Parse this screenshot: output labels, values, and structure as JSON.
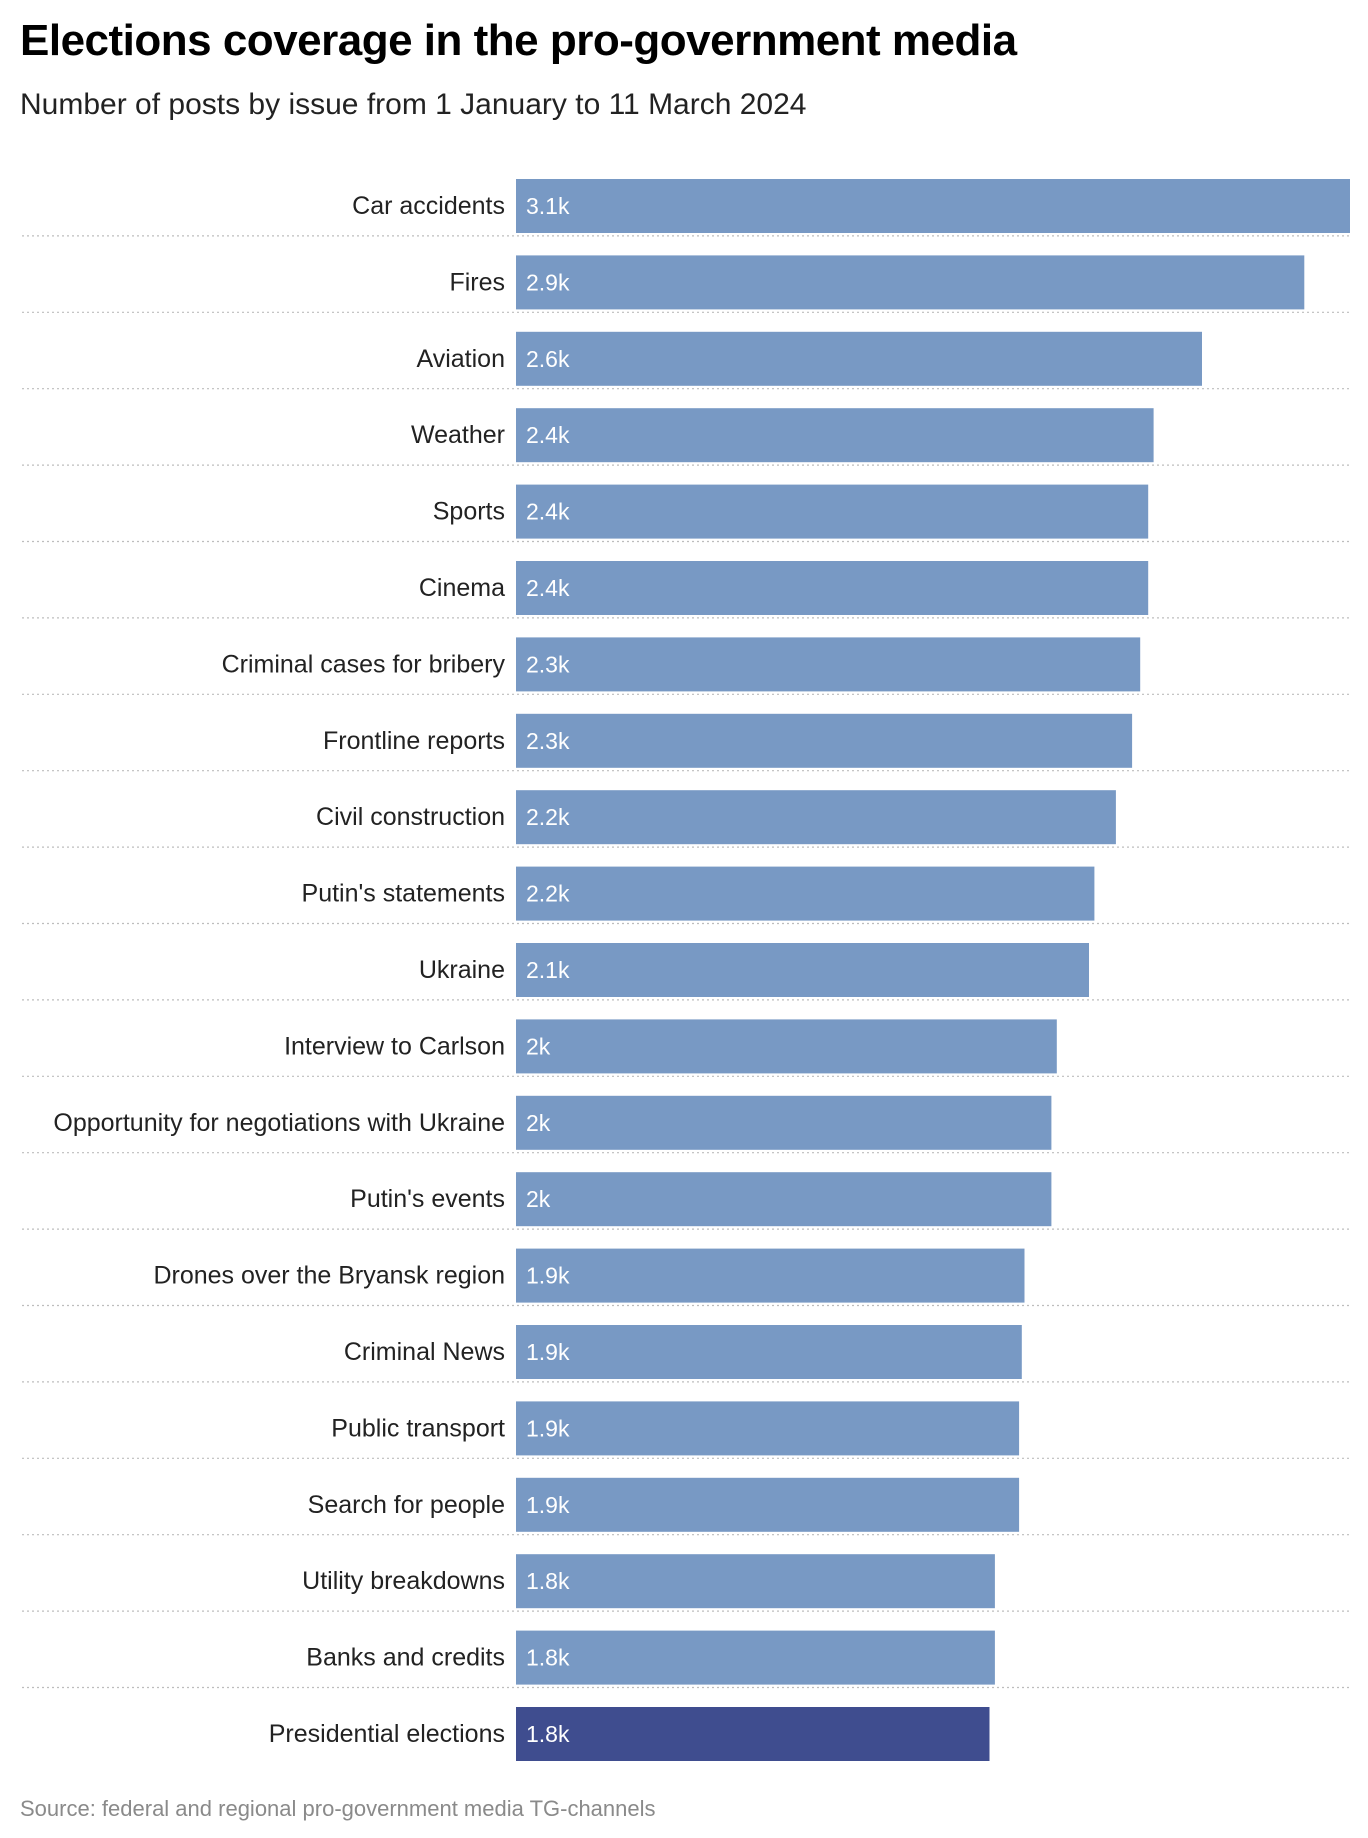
{
  "header": {
    "title": "Elections coverage in the pro-government media",
    "subtitle": "Number of posts by issue from 1 January to 11 March 2024"
  },
  "footer": {
    "source": "Source: federal and regional pro-government media TG-channels"
  },
  "colors": {
    "bar_default": "#7899c4",
    "bar_highlight": "#3f4d8f",
    "separator": "#bdbdbd",
    "value_label": "#ffffff",
    "category_label": "#222222"
  },
  "chart_data": {
    "type": "bar",
    "orientation": "horizontal",
    "title": "Elections coverage in the pro-government media",
    "subtitle": "Number of posts by issue from 1 January to 11 March 2024",
    "xlim": [
      0,
      3100
    ],
    "grid": false,
    "highlighted_category": "Presidential elections",
    "categories": [
      "Car accidents",
      "Fires",
      "Aviation",
      "Weather",
      "Sports",
      "Cinema",
      "Criminal cases for bribery",
      "Frontline reports",
      "Civil construction",
      "Putin's statements",
      "Ukraine",
      "Interview to Carlson",
      "Opportunity for negotiations with Ukraine",
      "Putin's events",
      "Drones over the Bryansk region",
      "Criminal News",
      "Public transport",
      "Search for people",
      "Utility breakdowns",
      "Banks and  credits",
      "Presidential elections"
    ],
    "values": [
      3100,
      2930,
      2550,
      2370,
      2350,
      2350,
      2320,
      2290,
      2230,
      2150,
      2130,
      2010,
      1990,
      1990,
      1890,
      1880,
      1870,
      1870,
      1780,
      1780,
      1760
    ],
    "value_labels": [
      "3.1k",
      "2.9k",
      "2.6k",
      "2.4k",
      "2.4k",
      "2.4k",
      "2.3k",
      "2.3k",
      "2.2k",
      "2.2k",
      "2.1k",
      "2k",
      "2k",
      "2k",
      "1.9k",
      "1.9k",
      "1.9k",
      "1.9k",
      "1.8k",
      "1.8k",
      "1.8k"
    ]
  }
}
